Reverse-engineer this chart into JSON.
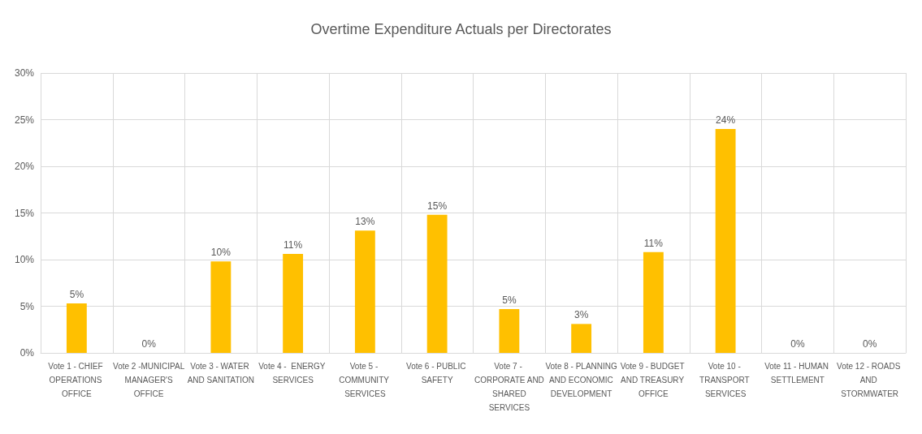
{
  "chart_data": {
    "type": "bar",
    "title": "Overtime Expenditure Actuals per Directorates",
    "categories": [
      "Vote 1 - CHIEF OPERATIONS OFFICE",
      "Vote 2 -MUNICIPAL MANAGER'S OFFICE",
      "Vote 3 - WATER AND SANITATION",
      "Vote 4 -  ENERGY SERVICES",
      "Vote 5 - COMMUNITY SERVICES",
      "Vote 6 - PUBLIC SAFETY",
      "Vote 7 - CORPORATE AND SHARED SERVICES",
      "Vote 8 - PLANNING AND ECONOMIC DEVELOPMENT",
      "Vote 9 - BUDGET AND TREASURY OFFICE",
      "Vote 10 - TRANSPORT SERVICES",
      "Vote 11 - HUMAN SETTLEMENT",
      "Vote 12 - ROADS AND STORMWATER"
    ],
    "values": [
      5.3,
      0,
      9.8,
      10.6,
      13.1,
      14.8,
      4.7,
      3.1,
      10.8,
      24.0,
      0,
      0
    ],
    "value_labels": [
      "5%",
      "0%",
      "10%",
      "11%",
      "13%",
      "15%",
      "5%",
      "3%",
      "11%",
      "24%",
      "0%",
      "0%"
    ],
    "color": "#ffc000",
    "ylim": [
      0,
      30
    ],
    "yticks": [
      {
        "value": 0,
        "label": "0%"
      },
      {
        "value": 5,
        "label": "5%"
      },
      {
        "value": 10,
        "label": "10%"
      },
      {
        "value": 15,
        "label": "15%"
      },
      {
        "value": 20,
        "label": "20%"
      },
      {
        "value": 25,
        "label": "25%"
      },
      {
        "value": 30,
        "label": "30%"
      }
    ],
    "grid": true
  }
}
